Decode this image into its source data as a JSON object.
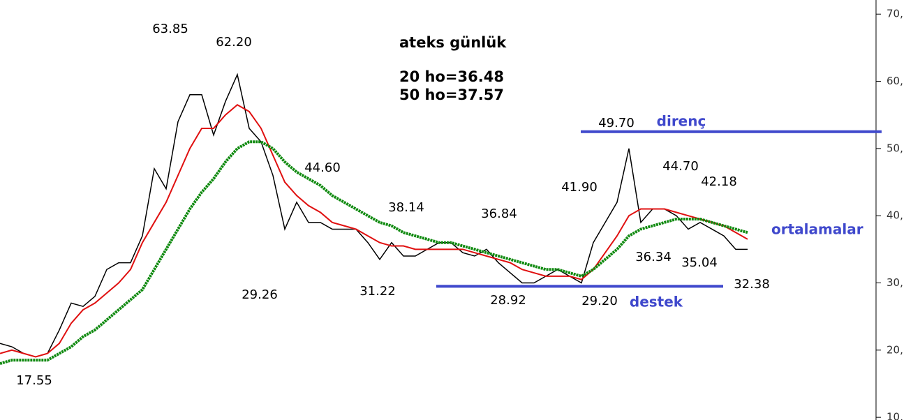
{
  "chart_data": {
    "type": "line",
    "title": "ateks günlük",
    "subtitle_lines": [
      "20 ho=36.48",
      "50 ho=37.57"
    ],
    "categories": [
      null,
      null,
      null,
      null,
      null,
      null,
      null,
      null,
      null,
      null,
      null,
      null,
      null,
      null,
      null,
      null,
      null,
      null,
      null,
      null,
      null,
      null,
      null,
      null,
      null,
      null,
      null,
      null,
      null,
      null,
      null,
      null,
      null,
      null,
      null,
      null,
      null,
      null,
      null,
      null,
      null,
      null,
      null,
      null,
      null,
      null,
      null,
      null,
      null,
      null,
      null,
      null,
      null,
      null,
      null,
      null,
      null,
      null,
      null,
      null,
      null,
      null,
      null,
      null
    ],
    "series": [
      {
        "name": "ateks",
        "color": "#000000",
        "values": [
          21,
          20.5,
          19.5,
          19,
          19.5,
          23,
          27,
          26.5,
          28,
          32,
          33,
          33,
          37,
          47,
          44,
          54,
          58,
          58,
          52,
          57,
          61,
          53,
          51,
          46,
          38,
          42,
          39,
          39,
          38,
          38,
          38,
          36,
          33.5,
          36,
          34,
          34,
          35,
          36,
          36,
          34.5,
          34,
          35,
          33,
          31.5,
          30,
          30,
          31,
          32,
          31,
          30,
          36,
          39,
          42,
          50,
          39,
          41,
          41,
          40,
          38,
          39,
          38,
          37,
          35,
          35
        ]
      },
      {
        "name": "20 ho",
        "color": "#e01010",
        "values": [
          19.5,
          20,
          19.5,
          19,
          19.5,
          21,
          24,
          26,
          27,
          28.5,
          30,
          32,
          36,
          39,
          42,
          46,
          50,
          53,
          53,
          55,
          56.5,
          55.5,
          53,
          49,
          45,
          43,
          41.5,
          40.5,
          39,
          38.5,
          38,
          37,
          36,
          35.5,
          35.5,
          35,
          35,
          35,
          35,
          35,
          34.5,
          34,
          33.5,
          33,
          32,
          31.5,
          31,
          31,
          31,
          30.5,
          32,
          34.5,
          37,
          40,
          41,
          41,
          41,
          40.5,
          40,
          39.5,
          39,
          38.5,
          37.5,
          36.5
        ]
      },
      {
        "name": "50 ho",
        "color": "#108a10",
        "values": [
          18,
          18.5,
          18.5,
          18.5,
          18.5,
          19.5,
          20.5,
          22,
          23,
          24.5,
          26,
          27.5,
          29,
          32,
          35,
          38,
          41,
          43.5,
          45.5,
          48,
          50,
          51,
          51,
          50,
          48,
          46.5,
          45.5,
          44.5,
          43,
          42,
          41,
          40,
          39,
          38.5,
          37.5,
          37,
          36.5,
          36,
          36,
          35.5,
          35,
          34.5,
          34,
          33.5,
          33,
          32.5,
          32,
          32,
          31.5,
          31,
          32,
          33.5,
          35,
          37,
          38,
          38.5,
          39,
          39.5,
          39.5,
          39.5,
          39,
          38.5,
          38,
          37.5
        ]
      }
    ],
    "levels": [
      {
        "name": "direnç",
        "value": 52.5,
        "color": "#3f48cc"
      },
      {
        "name": "destek",
        "value": 29.5,
        "color": "#3f48cc"
      }
    ],
    "ma_label": "ortalamalar",
    "annotations": [
      "63.85",
      "62.20",
      "44.60",
      "38.14",
      "36.84",
      "29.26",
      "31.22",
      "28.92",
      "29.20",
      "41.90",
      "49.70",
      "44.70",
      "42.18",
      "36.34",
      "35.04",
      "32.38",
      "17.55"
    ],
    "ylim": [
      9.6,
      72.1
    ],
    "yticks": [
      {
        "value": 10,
        "label": "10,"
      },
      {
        "value": 20,
        "label": "20,"
      },
      {
        "value": 30,
        "label": "30,"
      },
      {
        "value": 40,
        "label": "40,"
      },
      {
        "value": 50,
        "label": "50,"
      },
      {
        "value": 60,
        "label": "60,"
      },
      {
        "value": 70,
        "label": "70,"
      }
    ]
  }
}
